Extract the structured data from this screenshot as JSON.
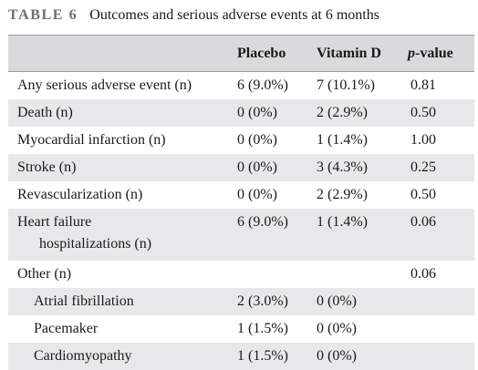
{
  "caption": {
    "label": "TABLE 6",
    "text": "Outcomes and serious adverse events at 6 months"
  },
  "headers": {
    "placebo": "Placebo",
    "vitamin_d": "Vitamin D",
    "p_italic": "p",
    "p_rest": "-value"
  },
  "rows": [
    {
      "name": "Any serious adverse event (n)",
      "placebo": "6 (9.0%)",
      "vitamin_d": "7 (10.1%)",
      "p": "0.81"
    },
    {
      "name": "Death (n)",
      "placebo": "0 (0%)",
      "vitamin_d": "2 (2.9%)",
      "p": "0.50"
    },
    {
      "name": "Myocardial infarction (n)",
      "placebo": "0 (0%)",
      "vitamin_d": "1 (1.4%)",
      "p": "1.00"
    },
    {
      "name": "Stroke (n)",
      "placebo": "0 (0%)",
      "vitamin_d": "3 (4.3%)",
      "p": "0.25"
    },
    {
      "name": "Revascularization (n)",
      "placebo": "0 (0%)",
      "vitamin_d": "2 (2.9%)",
      "p": "0.50"
    },
    {
      "name": "Heart failure",
      "name_line2": "hospitalizations (n)",
      "placebo": "6 (9.0%)",
      "vitamin_d": "1 (1.4%)",
      "p": "0.06"
    },
    {
      "name": "Other (n)",
      "placebo": "",
      "vitamin_d": "",
      "p": "0.06"
    },
    {
      "name": "Atrial fibrillation",
      "placebo": "2 (3.0%)",
      "vitamin_d": "0 (0%)",
      "p": ""
    },
    {
      "name": "Pacemaker",
      "placebo": "1 (1.5%)",
      "vitamin_d": "0 (0%)",
      "p": ""
    },
    {
      "name": "Cardiomyopathy",
      "placebo": "1 (1.5%)",
      "vitamin_d": "0 (0%)",
      "p": ""
    }
  ]
}
